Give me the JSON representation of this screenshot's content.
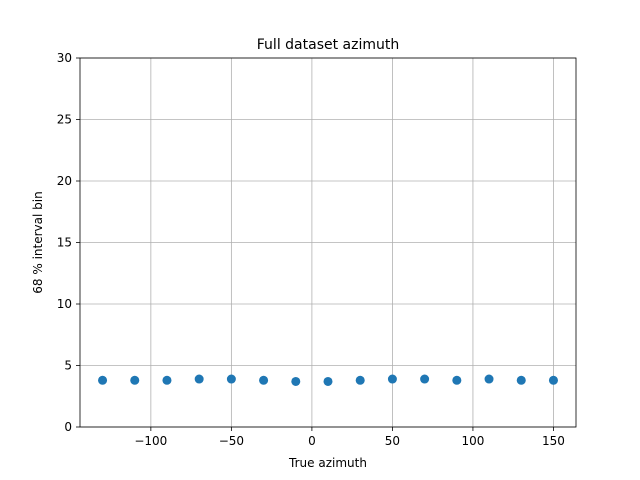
{
  "chart_data": {
    "type": "scatter",
    "title": "Full dataset azimuth",
    "xlabel": "True azimuth",
    "ylabel": "68 % interval bin",
    "xlim": [
      -144,
      164
    ],
    "ylim": [
      0,
      30
    ],
    "xticks": [
      -100,
      -50,
      0,
      50,
      100,
      150
    ],
    "xtick_labels": [
      "−100",
      "−50",
      "0",
      "50",
      "100",
      "150"
    ],
    "yticks": [
      0,
      5,
      10,
      15,
      20,
      25,
      30
    ],
    "ytick_labels": [
      "0",
      "5",
      "10",
      "15",
      "20",
      "25",
      "30"
    ],
    "grid": true,
    "color": "#1f77b4",
    "series": [
      {
        "x": [
          -130,
          -110,
          -90,
          -70,
          -50,
          -30,
          -10,
          10,
          30,
          50,
          70,
          90,
          110,
          130,
          150
        ],
        "y": [
          3.8,
          3.8,
          3.8,
          3.9,
          3.9,
          3.8,
          3.7,
          3.7,
          3.8,
          3.9,
          3.9,
          3.8,
          3.9,
          3.8,
          3.8
        ]
      }
    ]
  }
}
